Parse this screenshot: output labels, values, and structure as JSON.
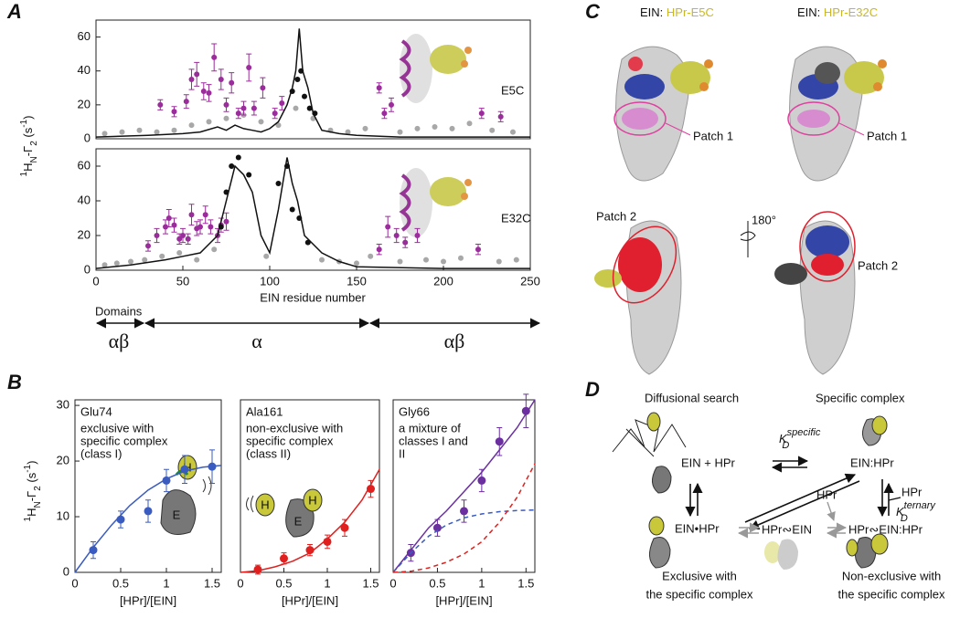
{
  "panel_labels": [
    "A",
    "B",
    "C",
    "D"
  ],
  "panel_a": {
    "y_label_parts": [
      "1",
      "H",
      "N",
      "-Γ",
      "2",
      " (s",
      "-1",
      ")"
    ],
    "x_label": "EIN residue number",
    "domains_title": "Domains",
    "domains": [
      "αβ",
      "α",
      "αβ"
    ]
  },
  "panel_b": {
    "y_label_parts": [
      "1",
      "H",
      "N",
      "-Γ",
      "2",
      " (s",
      "-1",
      ")"
    ],
    "cartoons": [
      [
        "H",
        "E"
      ],
      [
        "H",
        "H",
        "E"
      ]
    ]
  },
  "chart_data": [
    {
      "type": "scatter",
      "annotation": "E5C",
      "xlim": [
        0,
        250
      ],
      "ylim": [
        0,
        70
      ],
      "yticks": [
        0,
        20,
        40,
        60
      ],
      "series": [
        {
          "color": "#a8a8a8",
          "x": [
            5,
            15,
            25,
            35,
            45,
            55,
            65,
            75,
            85,
            95,
            105,
            115,
            125,
            135,
            145,
            155,
            175,
            185,
            195,
            205,
            215,
            228,
            240
          ],
          "values": [
            3,
            4,
            5,
            4,
            5,
            8,
            10,
            12,
            14,
            10,
            8,
            18,
            12,
            5,
            4,
            6,
            4,
            6,
            7,
            6,
            9,
            5,
            4
          ]
        },
        {
          "color": "#9b2c9b",
          "x": [
            37,
            45,
            52,
            55,
            58,
            62,
            65,
            68,
            72,
            75,
            78,
            82,
            85,
            88,
            91,
            96,
            103,
            107,
            163,
            166,
            170,
            222,
            233
          ],
          "values": [
            20,
            16,
            22,
            35,
            38,
            28,
            27,
            48,
            35,
            20,
            33,
            15,
            18,
            42,
            18,
            30,
            15,
            21,
            30,
            15,
            20,
            15,
            13
          ],
          "errors": [
            3,
            3,
            4,
            6,
            7,
            5,
            5,
            8,
            6,
            4,
            6,
            3,
            4,
            8,
            4,
            6,
            3,
            4,
            3,
            3,
            4,
            3,
            3
          ]
        },
        {
          "color": "#111111",
          "x": [
            113,
            116,
            118,
            120,
            123,
            126
          ],
          "values": [
            28,
            35,
            40,
            25,
            18,
            15
          ]
        },
        {
          "type": "line",
          "color": "#111111",
          "x": [
            0,
            30,
            50,
            60,
            70,
            75,
            80,
            85,
            90,
            95,
            100,
            105,
            110,
            113,
            115,
            117,
            119,
            122,
            125,
            130,
            140,
            150,
            175,
            200,
            250
          ],
          "values": [
            1,
            2,
            3,
            4,
            7,
            5,
            8,
            6,
            5,
            4,
            6,
            10,
            20,
            30,
            40,
            65,
            40,
            30,
            15,
            5,
            3,
            2,
            1,
            1,
            1
          ]
        }
      ]
    },
    {
      "type": "scatter",
      "annotation": "E32C",
      "xlim": [
        0,
        250
      ],
      "ylim": [
        0,
        70
      ],
      "xticks": [
        0,
        50,
        100,
        150,
        200,
        250
      ],
      "yticks": [
        0,
        20,
        40,
        60
      ],
      "series": [
        {
          "color": "#a8a8a8",
          "x": [
            5,
            12,
            20,
            28,
            38,
            48,
            58,
            68,
            98,
            130,
            140,
            150,
            158,
            175,
            190,
            200,
            210,
            232,
            242
          ],
          "values": [
            3,
            4,
            5,
            6,
            8,
            10,
            6,
            12,
            8,
            6,
            5,
            4,
            8,
            5,
            6,
            5,
            7,
            5,
            6
          ]
        },
        {
          "color": "#9b2c9b",
          "x": [
            30,
            35,
            40,
            42,
            45,
            48,
            50,
            53,
            55,
            58,
            60,
            63,
            66,
            70,
            72,
            75,
            163,
            168,
            173,
            178,
            185,
            220
          ],
          "values": [
            14,
            20,
            25,
            30,
            26,
            18,
            20,
            18,
            32,
            24,
            25,
            32,
            25,
            20,
            26,
            28,
            12,
            25,
            20,
            16,
            20,
            12
          ],
          "errors": [
            3,
            4,
            4,
            5,
            4,
            3,
            4,
            3,
            6,
            4,
            4,
            5,
            4,
            4,
            4,
            5,
            3,
            6,
            4,
            3,
            4,
            3
          ]
        },
        {
          "color": "#111111",
          "x": [
            72,
            75,
            78,
            82,
            88,
            105,
            110,
            113,
            117,
            122
          ],
          "values": [
            25,
            45,
            60,
            65,
            55,
            50,
            60,
            35,
            30,
            16
          ]
        },
        {
          "type": "line",
          "color": "#111111",
          "x": [
            0,
            20,
            40,
            50,
            60,
            65,
            70,
            75,
            80,
            85,
            90,
            95,
            100,
            105,
            110,
            113,
            116,
            120,
            125,
            130,
            140,
            150,
            200,
            250
          ],
          "values": [
            1,
            3,
            6,
            8,
            10,
            15,
            20,
            40,
            60,
            55,
            45,
            20,
            10,
            35,
            65,
            50,
            40,
            20,
            15,
            10,
            5,
            2,
            1,
            1
          ]
        }
      ]
    },
    {
      "type": "scatter",
      "title": "Glu74",
      "notes": [
        "exclusive with",
        "specific complex",
        "(class I)"
      ],
      "title_color": "#2e4fa8",
      "x_label": "[HPr]/[EIN]",
      "xlim": [
        0,
        1.6
      ],
      "ylim": [
        0,
        31
      ],
      "xticks": [
        0,
        0.5,
        1,
        1.5
      ],
      "yticks": [
        0,
        10,
        20,
        30
      ],
      "series": [
        {
          "color": "#3a5bbf",
          "x": [
            0.2,
            0.5,
            0.8,
            1.0,
            1.2,
            1.5
          ],
          "values": [
            4,
            9.5,
            11,
            16.5,
            18.5,
            19
          ],
          "errors": [
            1.5,
            1.5,
            2,
            2,
            2.5,
            3
          ]
        },
        {
          "type": "line",
          "color": "#3a5bbf",
          "x": [
            0,
            0.2,
            0.4,
            0.6,
            0.8,
            1.0,
            1.2,
            1.4,
            1.6
          ],
          "values": [
            0,
            4.5,
            8.5,
            12,
            14.8,
            16.8,
            18.2,
            18.9,
            19.2
          ]
        }
      ]
    },
    {
      "type": "scatter",
      "title": "Ala161",
      "notes": [
        "non-exclusive with",
        "specific complex",
        "(class II)"
      ],
      "title_color": "#e0201e",
      "x_label": "[HPr]/[EIN]",
      "xlim": [
        0,
        1.6
      ],
      "ylim": [
        0,
        31
      ],
      "xticks": [
        0,
        0.5,
        1,
        1.5
      ],
      "series": [
        {
          "color": "#e0201e",
          "x": [
            0.2,
            0.5,
            0.8,
            1.0,
            1.2,
            1.5
          ],
          "values": [
            0.5,
            2.5,
            4,
            5.5,
            8,
            15
          ],
          "errors": [
            0.8,
            1,
            1,
            1.2,
            1.5,
            1.5
          ]
        },
        {
          "type": "line",
          "color": "#e0201e",
          "x": [
            0,
            0.2,
            0.4,
            0.6,
            0.8,
            1.0,
            1.2,
            1.4,
            1.6
          ],
          "values": [
            0,
            0.3,
            1,
            2,
            3.5,
            6,
            9,
            13,
            18.5
          ]
        }
      ]
    },
    {
      "type": "scatter",
      "title": "Gly66",
      "notes": [
        "a mixture of",
        "classes I and",
        "II"
      ],
      "title_color": "#6b2fa0",
      "x_label": "[HPr]/[EIN]",
      "xlim": [
        0,
        1.6
      ],
      "ylim": [
        0,
        31
      ],
      "xticks": [
        0,
        0.5,
        1,
        1.5
      ],
      "series": [
        {
          "color": "#6b2fa0",
          "x": [
            0.2,
            0.5,
            0.8,
            1.0,
            1.2,
            1.5
          ],
          "values": [
            3.5,
            8,
            11,
            16.5,
            23.5,
            29
          ],
          "errors": [
            1.5,
            1.5,
            2,
            2,
            2.5,
            3
          ]
        },
        {
          "type": "line",
          "color": "#6b2fa0",
          "x": [
            0,
            0.2,
            0.4,
            0.6,
            0.8,
            1.0,
            1.2,
            1.4,
            1.6
          ],
          "values": [
            0,
            4,
            8,
            11,
            14.5,
            18,
            22,
            26,
            31
          ]
        },
        {
          "type": "line",
          "dashed": true,
          "color": "#3a5bbf",
          "x": [
            0,
            0.2,
            0.4,
            0.6,
            0.8,
            1.0,
            1.2,
            1.4,
            1.6
          ],
          "values": [
            0,
            3.5,
            6.5,
            8.5,
            9.8,
            10.5,
            10.9,
            11.1,
            11.2
          ]
        },
        {
          "type": "line",
          "dashed": true,
          "color": "#e0201e",
          "x": [
            0,
            0.2,
            0.4,
            0.6,
            0.8,
            1.0,
            1.2,
            1.4,
            1.6
          ],
          "values": [
            0,
            0.2,
            0.8,
            1.8,
            3.3,
            5.5,
            9,
            13.5,
            19.5
          ]
        }
      ]
    }
  ],
  "panel_c": {
    "headers": [
      {
        "prefix": "EIN:",
        "name": "HPr-E5C"
      },
      {
        "prefix": "EIN:",
        "name": "HPr-E32C"
      }
    ],
    "patch1": [
      "Patch 1",
      "Patch 1"
    ],
    "rotation": "180°",
    "patch2": [
      "Patch 2",
      "Patch 2"
    ]
  },
  "panel_d": {
    "diffusional": "Diffusional search",
    "specific": "Specific complex",
    "ein_plus_hpr": "EIN + HPr",
    "ein_hpr": "EIN:HPr",
    "kd_specific": {
      "k": "K",
      "sup": "specific",
      "sub": "D"
    },
    "ein_dot_hpr": "EIN•HPr",
    "hpr_ein": "HPr∾EIN",
    "hpr_gray": "HPr",
    "hpr_ternary": "HPr∾EIN:HPr",
    "hpr_black": "HPr",
    "kd_ternary": {
      "k": "K",
      "sup": "ternary",
      "sub": "D"
    },
    "exclusive": [
      "Exclusive with",
      "the specific complex"
    ],
    "nonexclusive": [
      "Non-exclusive with",
      "the specific complex"
    ]
  }
}
